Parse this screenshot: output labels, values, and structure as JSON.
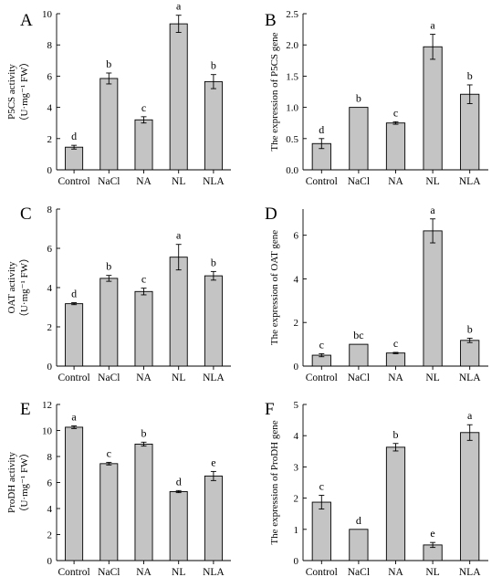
{
  "chart_data": [
    {
      "panel": "A",
      "type": "bar",
      "ylabel": "P5CS activity",
      "ylabel_unit": "（U·mg⁻¹ FW）",
      "ylim": [
        0,
        10
      ],
      "yticks": [
        0,
        2,
        4,
        6,
        8,
        10
      ],
      "categories": [
        "Control",
        "NaCl",
        "NA",
        "NL",
        "NLA"
      ],
      "values": [
        1.45,
        5.85,
        3.2,
        9.35,
        5.65
      ],
      "errors": [
        0.12,
        0.35,
        0.2,
        0.55,
        0.45
      ],
      "letters": [
        "d",
        "b",
        "c",
        "a",
        "b"
      ]
    },
    {
      "panel": "B",
      "type": "bar",
      "ylabel": "The expression of P5CS gene",
      "ylim": [
        0,
        2.5
      ],
      "yticks": [
        0.0,
        0.5,
        1.0,
        1.5,
        2.0,
        2.5
      ],
      "categories": [
        "Control",
        "NaCl",
        "NA",
        "NL",
        "NLA"
      ],
      "values": [
        0.42,
        1.0,
        0.75,
        1.97,
        1.21
      ],
      "errors": [
        0.08,
        0.0,
        0.02,
        0.2,
        0.15
      ],
      "letters": [
        "d",
        "b",
        "c",
        "a",
        "b"
      ]
    },
    {
      "panel": "C",
      "type": "bar",
      "ylabel": "OAT activity",
      "ylabel_unit": "（U·mg⁻¹ FW）",
      "ylim": [
        0,
        8
      ],
      "yticks": [
        0,
        2,
        4,
        6,
        8
      ],
      "categories": [
        "Control",
        "NaCl",
        "NA",
        "NL",
        "NLA"
      ],
      "values": [
        3.18,
        4.47,
        3.8,
        5.55,
        4.6
      ],
      "errors": [
        0.05,
        0.15,
        0.17,
        0.65,
        0.22
      ],
      "letters": [
        "d",
        "b",
        "c",
        "a",
        "b"
      ]
    },
    {
      "panel": "D",
      "type": "bar",
      "ylabel": "The expression of OAT gene",
      "ylim": [
        0,
        7.2
      ],
      "yticks": [
        0,
        2,
        4,
        6
      ],
      "categories": [
        "Control",
        "NaCl",
        "NA",
        "NL",
        "NLA"
      ],
      "values": [
        0.5,
        1.0,
        0.6,
        6.2,
        1.18
      ],
      "errors": [
        0.07,
        0.0,
        0.03,
        0.55,
        0.1
      ],
      "letters": [
        "c",
        "bc",
        "c",
        "a",
        "b"
      ]
    },
    {
      "panel": "E",
      "type": "bar",
      "ylabel": "ProDH activity",
      "ylabel_unit": "（U·mg⁻¹ FW）",
      "ylim": [
        0,
        12
      ],
      "yticks": [
        0,
        2,
        4,
        6,
        8,
        10,
        12
      ],
      "categories": [
        "Control",
        "NaCl",
        "NA",
        "NL",
        "NLA"
      ],
      "values": [
        10.25,
        7.45,
        8.95,
        5.3,
        6.5
      ],
      "errors": [
        0.1,
        0.1,
        0.15,
        0.08,
        0.35
      ],
      "letters": [
        "a",
        "c",
        "b",
        "d",
        "e"
      ]
    },
    {
      "panel": "F",
      "type": "bar",
      "ylabel": "The expression of ProDH gene",
      "ylim": [
        0,
        5
      ],
      "yticks": [
        0,
        1,
        2,
        3,
        4,
        5
      ],
      "categories": [
        "Control",
        "NaCl",
        "NA",
        "NL",
        "NLA"
      ],
      "values": [
        1.87,
        1.0,
        3.63,
        0.5,
        4.1
      ],
      "errors": [
        0.22,
        0.0,
        0.12,
        0.08,
        0.25
      ],
      "letters": [
        "c",
        "d",
        "b",
        "e",
        "a"
      ]
    }
  ]
}
